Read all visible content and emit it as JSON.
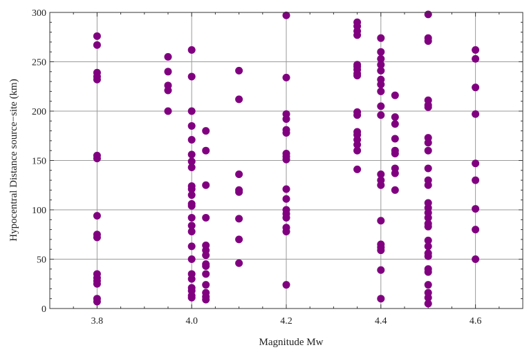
{
  "chart_data": {
    "type": "scatter",
    "title": "",
    "xlabel": "Magnitude Mw",
    "ylabel": "Hypocentral Distance source−site (km)",
    "xlim": [
      3.7,
      4.7
    ],
    "ylim": [
      0,
      300
    ],
    "x_ticks": [
      3.8,
      4.0,
      4.2,
      4.4,
      4.6
    ],
    "x_tick_labels": [
      "3.8",
      "4.0",
      "4.2",
      "4.4",
      "4.6"
    ],
    "y_ticks": [
      0,
      50,
      100,
      150,
      200,
      250,
      300
    ],
    "y_tick_labels": [
      "0",
      "50",
      "100",
      "150",
      "200",
      "250",
      "300"
    ],
    "grid": true,
    "marker_color": "#800080",
    "series": [
      {
        "points": [
          [
            3.8,
            276
          ],
          [
            3.8,
            267
          ],
          [
            3.8,
            239
          ],
          [
            3.8,
            235
          ],
          [
            3.8,
            232
          ],
          [
            3.8,
            155
          ],
          [
            3.8,
            152
          ],
          [
            3.8,
            94
          ],
          [
            3.8,
            75
          ],
          [
            3.8,
            72
          ],
          [
            3.8,
            35
          ],
          [
            3.8,
            31
          ],
          [
            3.8,
            28
          ],
          [
            3.8,
            25
          ],
          [
            3.8,
            10
          ],
          [
            3.8,
            7
          ],
          [
            3.95,
            255
          ],
          [
            3.95,
            240
          ],
          [
            3.95,
            226
          ],
          [
            3.95,
            221
          ],
          [
            3.95,
            200
          ],
          [
            4.0,
            262
          ],
          [
            4.0,
            235
          ],
          [
            4.0,
            200
          ],
          [
            4.0,
            185
          ],
          [
            4.0,
            171
          ],
          [
            4.0,
            156
          ],
          [
            4.0,
            149
          ],
          [
            4.0,
            143
          ],
          [
            4.0,
            124
          ],
          [
            4.0,
            121
          ],
          [
            4.0,
            115
          ],
          [
            4.0,
            106
          ],
          [
            4.0,
            104
          ],
          [
            4.0,
            92
          ],
          [
            4.0,
            84
          ],
          [
            4.0,
            78
          ],
          [
            4.0,
            63
          ],
          [
            4.0,
            50
          ],
          [
            4.0,
            35
          ],
          [
            4.0,
            30
          ],
          [
            4.0,
            21
          ],
          [
            4.0,
            18
          ],
          [
            4.0,
            13
          ],
          [
            4.0,
            11
          ],
          [
            4.03,
            180
          ],
          [
            4.03,
            160
          ],
          [
            4.03,
            125
          ],
          [
            4.03,
            92
          ],
          [
            4.03,
            64
          ],
          [
            4.03,
            59
          ],
          [
            4.03,
            54
          ],
          [
            4.03,
            45
          ],
          [
            4.03,
            43
          ],
          [
            4.03,
            35
          ],
          [
            4.03,
            24
          ],
          [
            4.03,
            16
          ],
          [
            4.03,
            12
          ],
          [
            4.03,
            9
          ],
          [
            4.1,
            241
          ],
          [
            4.1,
            212
          ],
          [
            4.1,
            136
          ],
          [
            4.1,
            120
          ],
          [
            4.1,
            118
          ],
          [
            4.1,
            91
          ],
          [
            4.1,
            70
          ],
          [
            4.1,
            46
          ],
          [
            4.2,
            297
          ],
          [
            4.2,
            234
          ],
          [
            4.2,
            197
          ],
          [
            4.2,
            192
          ],
          [
            4.2,
            181
          ],
          [
            4.2,
            178
          ],
          [
            4.2,
            157
          ],
          [
            4.2,
            154
          ],
          [
            4.2,
            151
          ],
          [
            4.2,
            121
          ],
          [
            4.2,
            111
          ],
          [
            4.2,
            100
          ],
          [
            4.2,
            96
          ],
          [
            4.2,
            92
          ],
          [
            4.2,
            82
          ],
          [
            4.2,
            78
          ],
          [
            4.2,
            24
          ],
          [
            4.35,
            290
          ],
          [
            4.35,
            286
          ],
          [
            4.35,
            281
          ],
          [
            4.35,
            277
          ],
          [
            4.35,
            247
          ],
          [
            4.35,
            245
          ],
          [
            4.35,
            242
          ],
          [
            4.35,
            238
          ],
          [
            4.35,
            236
          ],
          [
            4.35,
            199
          ],
          [
            4.35,
            196
          ],
          [
            4.35,
            179
          ],
          [
            4.35,
            176
          ],
          [
            4.35,
            171
          ],
          [
            4.35,
            166
          ],
          [
            4.35,
            160
          ],
          [
            4.35,
            141
          ],
          [
            4.4,
            274
          ],
          [
            4.4,
            260
          ],
          [
            4.4,
            253
          ],
          [
            4.4,
            247
          ],
          [
            4.4,
            241
          ],
          [
            4.4,
            232
          ],
          [
            4.4,
            227
          ],
          [
            4.4,
            220
          ],
          [
            4.4,
            205
          ],
          [
            4.4,
            196
          ],
          [
            4.4,
            136
          ],
          [
            4.4,
            130
          ],
          [
            4.4,
            125
          ],
          [
            4.4,
            89
          ],
          [
            4.4,
            65
          ],
          [
            4.4,
            62
          ],
          [
            4.4,
            59
          ],
          [
            4.4,
            39
          ],
          [
            4.4,
            10
          ],
          [
            4.43,
            216
          ],
          [
            4.43,
            194
          ],
          [
            4.43,
            187
          ],
          [
            4.43,
            172
          ],
          [
            4.43,
            160
          ],
          [
            4.43,
            157
          ],
          [
            4.43,
            142
          ],
          [
            4.43,
            137
          ],
          [
            4.43,
            120
          ],
          [
            4.5,
            298
          ],
          [
            4.5,
            274
          ],
          [
            4.5,
            271
          ],
          [
            4.5,
            211
          ],
          [
            4.5,
            206
          ],
          [
            4.5,
            204
          ],
          [
            4.5,
            173
          ],
          [
            4.5,
            168
          ],
          [
            4.5,
            160
          ],
          [
            4.5,
            142
          ],
          [
            4.5,
            130
          ],
          [
            4.5,
            125
          ],
          [
            4.5,
            107
          ],
          [
            4.5,
            102
          ],
          [
            4.5,
            97
          ],
          [
            4.5,
            92
          ],
          [
            4.5,
            86
          ],
          [
            4.5,
            83
          ],
          [
            4.5,
            69
          ],
          [
            4.5,
            63
          ],
          [
            4.5,
            56
          ],
          [
            4.5,
            53
          ],
          [
            4.5,
            40
          ],
          [
            4.5,
            37
          ],
          [
            4.5,
            24
          ],
          [
            4.5,
            16
          ],
          [
            4.5,
            11
          ],
          [
            4.5,
            5
          ],
          [
            4.6,
            262
          ],
          [
            4.6,
            253
          ],
          [
            4.6,
            224
          ],
          [
            4.6,
            197
          ],
          [
            4.6,
            147
          ],
          [
            4.6,
            130
          ],
          [
            4.6,
            101
          ],
          [
            4.6,
            80
          ],
          [
            4.6,
            50
          ]
        ]
      }
    ]
  }
}
